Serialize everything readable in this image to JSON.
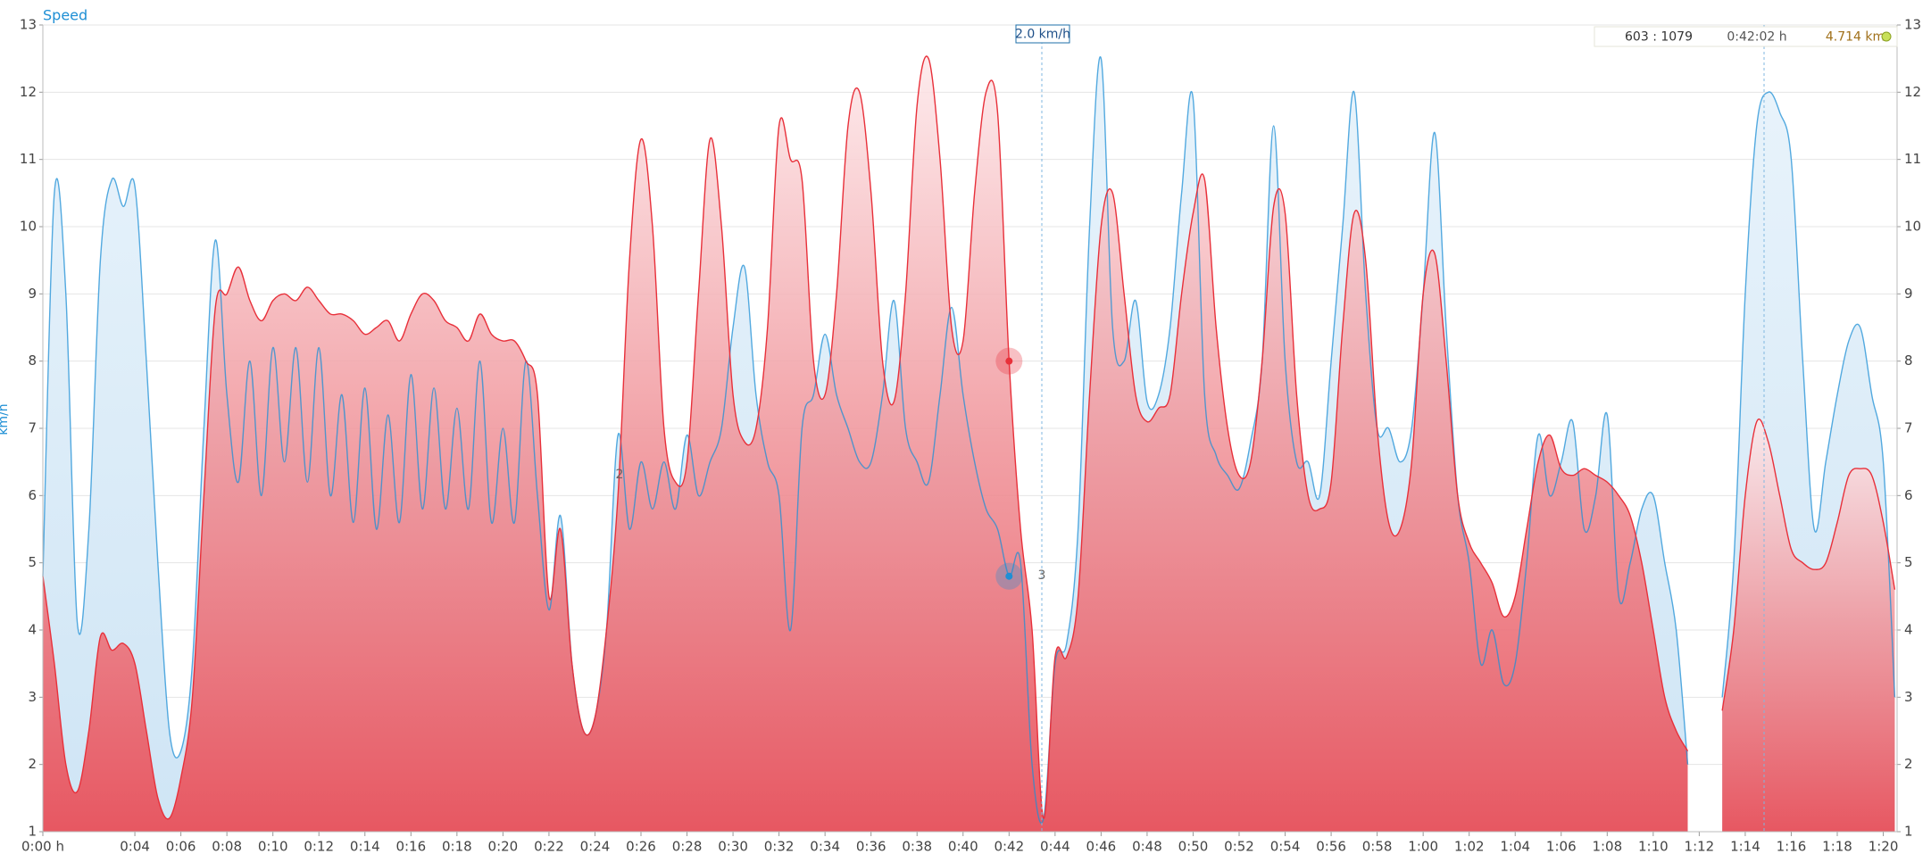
{
  "chart_data": {
    "type": "area",
    "title": "Speed",
    "y_label": "km/h",
    "annotation": "2.0 km/h",
    "lap_labels": [
      "2",
      "3"
    ],
    "info_box": {
      "index": "603 : 1079",
      "time": "0:42:02 h",
      "distance": "4.714 km"
    },
    "grid": true,
    "xlim": [
      0,
      80.6
    ],
    "ylim": [
      1,
      13
    ],
    "y2lim": [
      1,
      13
    ],
    "yticks": [
      1,
      2,
      3,
      4,
      5,
      6,
      7,
      8,
      9,
      10,
      11,
      12,
      13
    ],
    "y2ticks": [
      1,
      2,
      3,
      4,
      5,
      6,
      7,
      8,
      9,
      10,
      11,
      12,
      13
    ],
    "xticks": [
      {
        "value": 0,
        "label": "0:00 h"
      },
      {
        "value": 4,
        "label": "0:04"
      },
      {
        "value": 6,
        "label": "0:06"
      },
      {
        "value": 8,
        "label": "0:08"
      },
      {
        "value": 10,
        "label": "0:10"
      },
      {
        "value": 12,
        "label": "0:12"
      },
      {
        "value": 14,
        "label": "0:14"
      },
      {
        "value": 16,
        "label": "0:16"
      },
      {
        "value": 18,
        "label": "0:18"
      },
      {
        "value": 20,
        "label": "0:20"
      },
      {
        "value": 22,
        "label": "0:22"
      },
      {
        "value": 24,
        "label": "0:24"
      },
      {
        "value": 26,
        "label": "0:26"
      },
      {
        "value": 28,
        "label": "0:28"
      },
      {
        "value": 30,
        "label": "0:30"
      },
      {
        "value": 32,
        "label": "0:32"
      },
      {
        "value": 34,
        "label": "0:34"
      },
      {
        "value": 36,
        "label": "0:36"
      },
      {
        "value": 38,
        "label": "0:38"
      },
      {
        "value": 40,
        "label": "0:40"
      },
      {
        "value": 42,
        "label": "0:42"
      },
      {
        "value": 44,
        "label": "0:44"
      },
      {
        "value": 46,
        "label": "0:46"
      },
      {
        "value": 48,
        "label": "0:48"
      },
      {
        "value": 50,
        "label": "0:50"
      },
      {
        "value": 52,
        "label": "0:52"
      },
      {
        "value": 54,
        "label": "0:54"
      },
      {
        "value": 56,
        "label": "0:56"
      },
      {
        "value": 58,
        "label": "0:58"
      },
      {
        "value": 60,
        "label": "1:00"
      },
      {
        "value": 62,
        "label": "1:02"
      },
      {
        "value": 64,
        "label": "1:04"
      },
      {
        "value": 66,
        "label": "1:06"
      },
      {
        "value": 68,
        "label": "1:08"
      },
      {
        "value": 70,
        "label": "1:10"
      },
      {
        "value": 72,
        "label": "1:12"
      },
      {
        "value": 74,
        "label": "1:14"
      },
      {
        "value": 76,
        "label": "1:16"
      },
      {
        "value": 78,
        "label": "1:18"
      },
      {
        "value": 80,
        "label": "1:20"
      }
    ],
    "x": [
      0,
      0.5,
      1,
      1.5,
      2,
      2.5,
      3,
      3.5,
      4,
      4.5,
      5,
      5.5,
      6,
      6.5,
      7,
      7.5,
      8,
      8.5,
      9,
      9.5,
      10,
      10.5,
      11,
      11.5,
      12,
      12.5,
      13,
      13.5,
      14,
      14.5,
      15,
      15.5,
      16,
      16.5,
      17,
      17.5,
      18,
      18.5,
      19,
      19.5,
      20,
      20.5,
      21,
      21.5,
      22,
      22.5,
      23,
      23.5,
      24,
      24.5,
      25,
      25.5,
      26,
      26.5,
      27,
      27.5,
      28,
      28.5,
      29,
      29.5,
      30,
      30.5,
      31,
      31.5,
      32,
      32.5,
      33,
      33.5,
      34,
      34.5,
      35,
      35.5,
      36,
      36.5,
      37,
      37.5,
      38,
      38.5,
      39,
      39.5,
      40,
      40.5,
      41,
      41.5,
      42,
      42.5,
      43,
      43.5,
      44,
      44.5,
      45,
      45.5,
      46,
      46.5,
      47,
      47.5,
      48,
      48.5,
      49,
      49.5,
      50,
      50.5,
      51,
      51.5,
      52,
      52.5,
      53,
      53.5,
      54,
      54.5,
      55,
      55.5,
      56,
      56.5,
      57,
      57.5,
      58,
      58.5,
      59,
      59.5,
      60,
      60.5,
      61,
      61.5,
      62,
      62.5,
      63,
      63.5,
      64,
      64.5,
      65,
      65.5,
      66,
      66.5,
      67,
      67.5,
      68,
      68.5,
      69,
      69.5,
      70,
      70.5,
      71,
      71.5,
      72,
      72.5,
      73,
      73.5,
      74,
      74.5,
      75,
      75.5,
      76,
      76.5,
      77,
      77.5,
      78,
      78.5,
      79,
      79.5,
      80,
      80.5
    ],
    "series": [
      {
        "color": "#1e8fd5",
        "values": [
          4.8,
          10.5,
          9,
          4.1,
          5.5,
          9.5,
          10.7,
          10.3,
          10.6,
          8,
          5,
          2.5,
          2.2,
          3.5,
          7,
          9.8,
          7.5,
          6.2,
          8,
          6,
          8.2,
          6.5,
          8.2,
          6.2,
          8.2,
          6,
          7.5,
          5.6,
          7.6,
          5.5,
          7.2,
          5.6,
          7.8,
          5.8,
          7.6,
          5.8,
          7.3,
          5.8,
          8,
          5.6,
          7,
          5.6,
          8,
          6,
          4.3,
          5.7,
          3.5,
          2.5,
          2.7,
          4,
          6.9,
          5.5,
          6.5,
          5.8,
          6.5,
          5.8,
          6.9,
          6,
          6.5,
          7,
          8.5,
          9.4,
          7.5,
          6.5,
          6,
          4,
          7,
          7.5,
          8.4,
          7.5,
          7,
          6.5,
          6.5,
          7.5,
          8.9,
          7,
          6.5,
          6.2,
          7.5,
          8.8,
          7.5,
          6.5,
          5.8,
          5.5,
          4.8,
          5,
          2,
          1.2,
          3.5,
          3.8,
          5.5,
          10,
          12.5,
          8.5,
          8,
          8.9,
          7.4,
          7.5,
          8.5,
          10.5,
          11.9,
          7.5,
          6.6,
          6.3,
          6.1,
          6.8,
          8,
          11.5,
          8,
          6.5,
          6.5,
          6,
          8,
          10,
          12,
          9,
          7,
          7,
          6.5,
          7,
          9,
          11.4,
          8.5,
          6,
          5,
          3.5,
          4,
          3.2,
          3.5,
          5,
          6.9,
          6,
          6.5,
          7.1,
          5.5,
          6,
          7.2,
          4.5,
          5,
          5.8,
          6,
          5,
          4,
          2,
          null,
          null,
          3,
          5,
          9,
          11.5,
          12,
          11.7,
          11,
          8,
          5.5,
          6.5,
          7.5,
          8.3,
          8.5,
          7.5,
          6.5,
          3
        ]
      },
      {
        "color": "#e8303a",
        "axis": "y2",
        "values": [
          4.8,
          3.5,
          2,
          1.6,
          2.5,
          3.9,
          3.7,
          3.8,
          3.5,
          2.5,
          1.5,
          1.2,
          1.8,
          3,
          6,
          8.8,
          9,
          9.4,
          8.9,
          8.6,
          8.9,
          9,
          8.9,
          9.1,
          8.9,
          8.7,
          8.7,
          8.6,
          8.4,
          8.5,
          8.6,
          8.3,
          8.7,
          9,
          8.9,
          8.6,
          8.5,
          8.3,
          8.7,
          8.4,
          8.3,
          8.3,
          8,
          7.5,
          4.5,
          5.5,
          3.5,
          2.5,
          2.7,
          4,
          6,
          9.5,
          11.3,
          10,
          7,
          6.2,
          6.5,
          9,
          11.3,
          10,
          7.5,
          6.8,
          7,
          8.5,
          11.5,
          11,
          10.7,
          8,
          7.5,
          9,
          11.5,
          12,
          10.5,
          8,
          7.4,
          9,
          11.8,
          12.5,
          11,
          8.5,
          8.3,
          10.5,
          12,
          11.7,
          8,
          5.5,
          4,
          1.2,
          3.6,
          3.6,
          4.5,
          7.5,
          10,
          10.5,
          9,
          7.5,
          7.1,
          7.3,
          7.5,
          9,
          10.2,
          10.7,
          8.5,
          7,
          6.3,
          6.5,
          8,
          10.3,
          10.2,
          7.5,
          6,
          5.8,
          6.2,
          8.5,
          10.2,
          9.5,
          7,
          5.6,
          5.5,
          6.5,
          9,
          9.6,
          8,
          6,
          5.3,
          5,
          4.7,
          4.2,
          4.5,
          5.5,
          6.5,
          6.9,
          6.4,
          6.3,
          6.4,
          6.3,
          6.2,
          6,
          5.7,
          5,
          4,
          3,
          2.5,
          2.2,
          null,
          null,
          2.8,
          4,
          6,
          7.1,
          6.8,
          6,
          5.2,
          5,
          4.9,
          5,
          5.6,
          6.3,
          6.4,
          6.3,
          5.6,
          4.6
        ]
      }
    ]
  }
}
